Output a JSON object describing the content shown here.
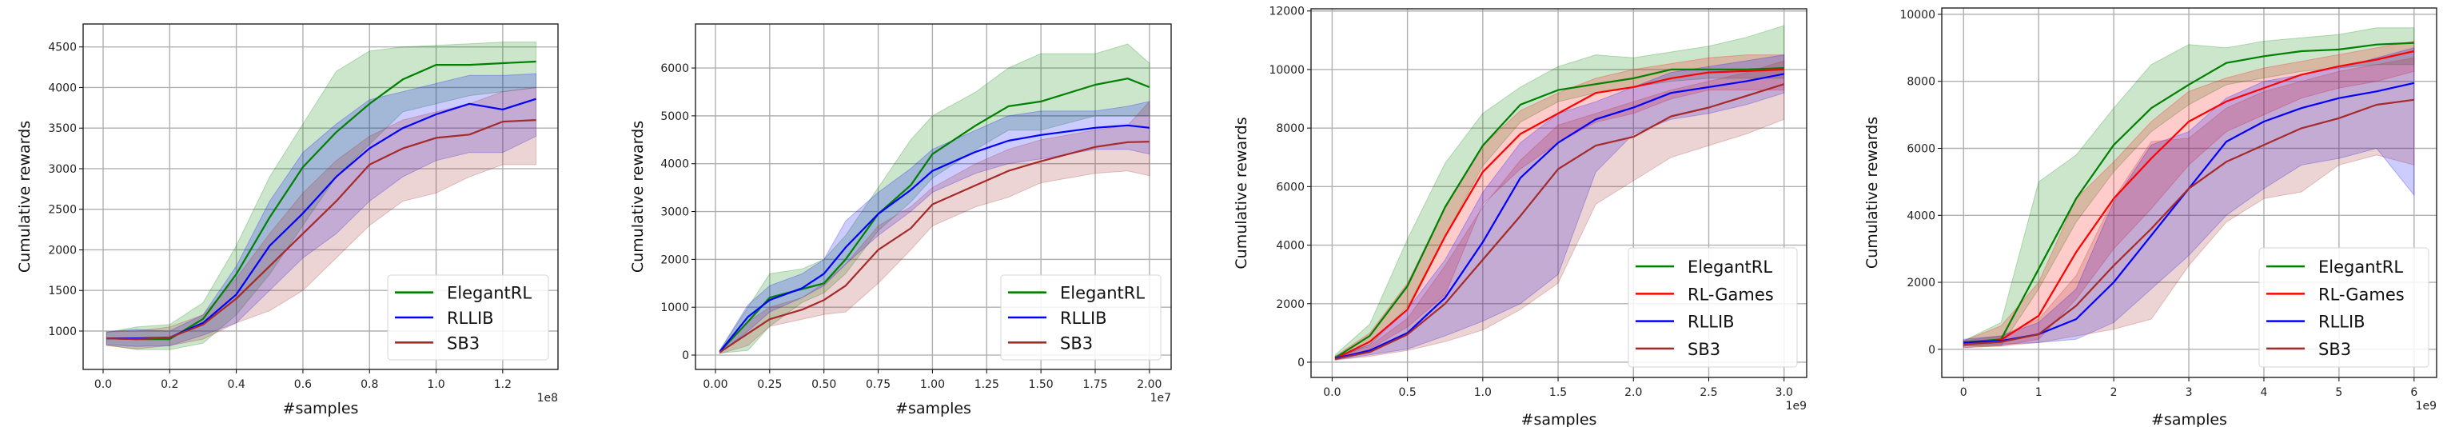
{
  "chart_data": [
    {
      "type": "line",
      "title": "",
      "xlabel": "#samples",
      "ylabel": "Cumulative rewards",
      "x_offset_label": "1e8",
      "xlim": [
        -0.06,
        1.366
      ],
      "ylim": [
        527,
        4783
      ],
      "xticks": [
        0.0,
        0.2,
        0.4,
        0.6,
        0.8,
        1.0,
        1.2
      ],
      "xtick_labels": [
        "0.0",
        "0.2",
        "0.4",
        "0.6",
        "0.8",
        "1.0",
        "1.2"
      ],
      "yticks": [
        1000,
        1500,
        2000,
        2500,
        3000,
        3500,
        4000,
        4500
      ],
      "ytick_labels": [
        "1000",
        "1500",
        "2000",
        "2500",
        "3000",
        "3500",
        "4000",
        "4500"
      ],
      "grid": true,
      "legend_position": "bottom-right",
      "x": [
        0.01,
        0.1,
        0.2,
        0.3,
        0.4,
        0.5,
        0.6,
        0.7,
        0.8,
        0.9,
        1.0,
        1.1,
        1.2,
        1.3
      ],
      "series": [
        {
          "name": "ElegantRL",
          "color": "#008000",
          "values": [
            910,
            900,
            900,
            1150,
            1700,
            2400,
            3020,
            3450,
            3800,
            4100,
            4280,
            4280,
            4300,
            4320
          ],
          "lower": [
            830,
            770,
            770,
            850,
            1200,
            1700,
            2300,
            2900,
            3300,
            3700,
            3800,
            3900,
            3950,
            4000
          ],
          "upper": [
            980,
            1050,
            1080,
            1350,
            2050,
            2900,
            3550,
            4200,
            4450,
            4500,
            4520,
            4540,
            4560,
            4560
          ]
        },
        {
          "name": "RLLIB",
          "color": "#0000ff",
          "values": [
            910,
            910,
            920,
            1100,
            1450,
            2050,
            2450,
            2900,
            3250,
            3500,
            3670,
            3800,
            3730,
            3860
          ],
          "lower": [
            830,
            810,
            820,
            950,
            1100,
            1500,
            1900,
            2200,
            2600,
            2900,
            3100,
            3200,
            3200,
            3400
          ],
          "upper": [
            990,
            1020,
            1000,
            1200,
            1800,
            2600,
            3200,
            3550,
            3850,
            3950,
            4050,
            4150,
            4150,
            4170
          ]
        },
        {
          "name": "SB3",
          "color": "#a52a2a",
          "values": [
            910,
            900,
            920,
            1080,
            1400,
            1800,
            2200,
            2600,
            3050,
            3250,
            3380,
            3420,
            3580,
            3600
          ],
          "lower": [
            820,
            780,
            820,
            900,
            1100,
            1250,
            1500,
            1900,
            2300,
            2600,
            2700,
            2900,
            3050,
            3050
          ],
          "upper": [
            990,
            1000,
            1050,
            1200,
            1650,
            2200,
            2700,
            3100,
            3400,
            3600,
            3700,
            3800,
            3950,
            4000
          ]
        }
      ]
    },
    {
      "type": "line",
      "title": "",
      "xlabel": "#samples",
      "ylabel": "Cumulative rewards",
      "x_offset_label": "1e7",
      "xlim": [
        -0.092,
        2.1
      ],
      "ylim": [
        -300,
        6920
      ],
      "xticks": [
        0.0,
        0.25,
        0.5,
        0.75,
        1.0,
        1.25,
        1.5,
        1.75,
        2.0
      ],
      "xtick_labels": [
        "0.00",
        "0.25",
        "0.50",
        "0.75",
        "1.00",
        "1.25",
        "1.50",
        "1.75",
        "2.00"
      ],
      "yticks": [
        0,
        1000,
        2000,
        3000,
        4000,
        5000,
        6000
      ],
      "ytick_labels": [
        "0",
        "1000",
        "2000",
        "3000",
        "4000",
        "5000",
        "6000"
      ],
      "grid": true,
      "legend_position": "bottom-right",
      "x": [
        0.02,
        0.15,
        0.25,
        0.4,
        0.5,
        0.6,
        0.75,
        0.9,
        1.0,
        1.2,
        1.35,
        1.5,
        1.75,
        1.9,
        2.0
      ],
      "series": [
        {
          "name": "ElegantRL",
          "color": "#008000",
          "values": [
            70,
            700,
            1200,
            1380,
            1500,
            2000,
            2950,
            3550,
            4200,
            4800,
            5200,
            5300,
            5650,
            5780,
            5600
          ],
          "lower": [
            40,
            100,
            600,
            1100,
            1300,
            1700,
            2600,
            3200,
            3700,
            4300,
            4700,
            4700,
            5000,
            5000,
            5000
          ],
          "upper": [
            100,
            1000,
            1700,
            1800,
            2000,
            2500,
            3500,
            4500,
            5000,
            5500,
            6000,
            6300,
            6300,
            6500,
            6100
          ]
        },
        {
          "name": "RLLIB",
          "color": "#0000ff",
          "values": [
            70,
            800,
            1150,
            1400,
            1700,
            2250,
            2950,
            3450,
            3850,
            4250,
            4480,
            4600,
            4750,
            4800,
            4750
          ],
          "lower": [
            40,
            500,
            900,
            1200,
            1450,
            1900,
            2500,
            3000,
            3400,
            3800,
            4000,
            4100,
            4300,
            4300,
            4200
          ],
          "upper": [
            100,
            1050,
            1450,
            1700,
            2000,
            2800,
            3400,
            3900,
            4300,
            4700,
            5000,
            5100,
            5100,
            5200,
            5300
          ]
        },
        {
          "name": "SB3",
          "color": "#a52a2a",
          "values": [
            60,
            450,
            750,
            950,
            1150,
            1450,
            2200,
            2650,
            3150,
            3550,
            3850,
            4050,
            4350,
            4450,
            4460
          ],
          "lower": [
            30,
            200,
            600,
            750,
            850,
            900,
            1500,
            2200,
            2700,
            3100,
            3300,
            3600,
            3800,
            3850,
            3750
          ],
          "upper": [
            90,
            700,
            1000,
            1200,
            1500,
            1900,
            2700,
            3100,
            3500,
            4000,
            4300,
            4500,
            4700,
            4800,
            5300
          ]
        }
      ]
    },
    {
      "type": "line",
      "title": "",
      "xlabel": "#samples",
      "ylabel": "Cumulative rewards",
      "x_offset_label": "1e9",
      "xlim": [
        -0.14,
        3.15
      ],
      "ylim": [
        -520,
        12075
      ],
      "xticks": [
        0.0,
        0.5,
        1.0,
        1.5,
        2.0,
        2.5,
        3.0
      ],
      "xtick_labels": [
        "0.0",
        "0.5",
        "1.0",
        "1.5",
        "2.0",
        "2.5",
        "3.0"
      ],
      "yticks": [
        0,
        2000,
        4000,
        6000,
        8000,
        10000,
        12000
      ],
      "ytick_labels": [
        "0",
        "2000",
        "4000",
        "6000",
        "8000",
        "10000",
        "12000"
      ],
      "grid": true,
      "legend_position": "bottom-right",
      "x": [
        0.02,
        0.25,
        0.5,
        0.75,
        1.0,
        1.25,
        1.5,
        1.75,
        2.0,
        2.25,
        2.5,
        2.75,
        3.0
      ],
      "series": [
        {
          "name": "ElegantRL",
          "color": "#008000",
          "values": [
            150,
            900,
            2600,
            5300,
            7400,
            8800,
            9300,
            9500,
            9700,
            10000,
            10000,
            10000,
            10050
          ],
          "lower": [
            100,
            600,
            1900,
            4300,
            6700,
            8200,
            8900,
            9200,
            9400,
            9600,
            9700,
            9700,
            9700
          ],
          "upper": [
            250,
            1300,
            4200,
            6800,
            8500,
            9400,
            10100,
            10500,
            10400,
            10600,
            10800,
            11100,
            11500
          ]
        },
        {
          "name": "RL-Games",
          "color": "#ff0000",
          "values": [
            120,
            700,
            1800,
            4300,
            6500,
            7800,
            8500,
            9200,
            9400,
            9700,
            9900,
            9950,
            10000
          ],
          "lower": [
            80,
            450,
            1200,
            2300,
            5400,
            6600,
            7500,
            8200,
            8500,
            9000,
            9300,
            9300,
            9300
          ],
          "upper": [
            200,
            1000,
            2700,
            5300,
            7400,
            8600,
            9200,
            9700,
            10000,
            10200,
            10400,
            10500,
            10500
          ]
        },
        {
          "name": "RLLIB",
          "color": "#0000ff",
          "values": [
            130,
            400,
            1000,
            2200,
            4100,
            6300,
            7500,
            8300,
            8700,
            9200,
            9400,
            9600,
            9850
          ],
          "lower": [
            80,
            250,
            450,
            900,
            1400,
            2000,
            3000,
            6500,
            7800,
            8300,
            8500,
            8800,
            9200
          ],
          "upper": [
            200,
            600,
            1800,
            3500,
            5800,
            7500,
            8500,
            8900,
            9400,
            9900,
            10100,
            10300,
            10500
          ]
        },
        {
          "name": "SB3",
          "color": "#a52a2a",
          "values": [
            110,
            350,
            950,
            2000,
            3500,
            5000,
            6600,
            7400,
            7700,
            8400,
            8700,
            9100,
            9500
          ],
          "lower": [
            70,
            200,
            400,
            700,
            1100,
            1800,
            2700,
            5400,
            6200,
            7000,
            7400,
            7800,
            8300
          ],
          "upper": [
            180,
            550,
            1500,
            3300,
            5300,
            6900,
            8100,
            8500,
            8900,
            9300,
            9600,
            9900,
            10300
          ]
        }
      ]
    },
    {
      "type": "line",
      "title": "",
      "xlabel": "#samples",
      "ylabel": "Cumulative rewards",
      "x_offset_label": "1e9",
      "xlim": [
        -0.29,
        6.3
      ],
      "ylim": [
        -840,
        10190
      ],
      "xticks": [
        0,
        1,
        2,
        3,
        4,
        5,
        6
      ],
      "xtick_labels": [
        "0",
        "1",
        "2",
        "3",
        "4",
        "5",
        "6"
      ],
      "yticks": [
        0,
        2000,
        4000,
        6000,
        8000,
        10000
      ],
      "ytick_labels": [
        "0",
        "2000",
        "4000",
        "6000",
        "8000",
        "10000"
      ],
      "grid": true,
      "legend_position": "bottom-right",
      "x": [
        0,
        0.5,
        1.0,
        1.5,
        2.0,
        2.5,
        3.0,
        3.5,
        4.0,
        4.5,
        5.0,
        5.5,
        6.0
      ],
      "series": [
        {
          "name": "ElegantRL",
          "color": "#008000",
          "values": [
            200,
            300,
            2400,
            4500,
            6100,
            7200,
            7900,
            8550,
            8750,
            8900,
            8950,
            9100,
            9150
          ],
          "lower": [
            100,
            100,
            1800,
            3800,
            5300,
            6500,
            7300,
            7900,
            8100,
            8300,
            8400,
            8500,
            8500
          ],
          "upper": [
            250,
            800,
            5000,
            5800,
            7200,
            8500,
            9100,
            9000,
            9200,
            9300,
            9400,
            9600,
            9600
          ]
        },
        {
          "name": "RL-Games",
          "color": "#ff0000",
          "values": [
            150,
            280,
            1000,
            2900,
            4500,
            5700,
            6800,
            7400,
            7800,
            8200,
            8450,
            8650,
            8900
          ],
          "lower": [
            50,
            100,
            300,
            1500,
            3000,
            4200,
            5500,
            6500,
            7000,
            7500,
            7800,
            8000,
            8300
          ],
          "upper": [
            250,
            700,
            2000,
            4500,
            5600,
            6800,
            7700,
            8100,
            8400,
            8600,
            8800,
            9000,
            9200
          ]
        },
        {
          "name": "RLLIB",
          "color": "#0000ff",
          "values": [
            200,
            250,
            450,
            900,
            2000,
            3400,
            4800,
            6200,
            6800,
            7200,
            7500,
            7700,
            7950
          ],
          "lower": [
            100,
            150,
            200,
            300,
            800,
            1800,
            2800,
            4000,
            4800,
            5500,
            5700,
            6000,
            4600
          ],
          "upper": [
            300,
            400,
            800,
            1800,
            4400,
            6100,
            6500,
            7500,
            8000,
            8200,
            8400,
            8700,
            9000
          ]
        },
        {
          "name": "SB3",
          "color": "#a52a2a",
          "values": [
            150,
            220,
            450,
            1300,
            2500,
            3600,
            4800,
            5600,
            6100,
            6600,
            6900,
            7300,
            7450
          ],
          "lower": [
            50,
            100,
            200,
            400,
            600,
            900,
            2500,
            3800,
            4500,
            4700,
            5500,
            5800,
            5500
          ],
          "upper": [
            250,
            400,
            900,
            2200,
            4500,
            6200,
            6300,
            7200,
            7700,
            8000,
            8300,
            8500,
            8700
          ]
        }
      ]
    }
  ]
}
